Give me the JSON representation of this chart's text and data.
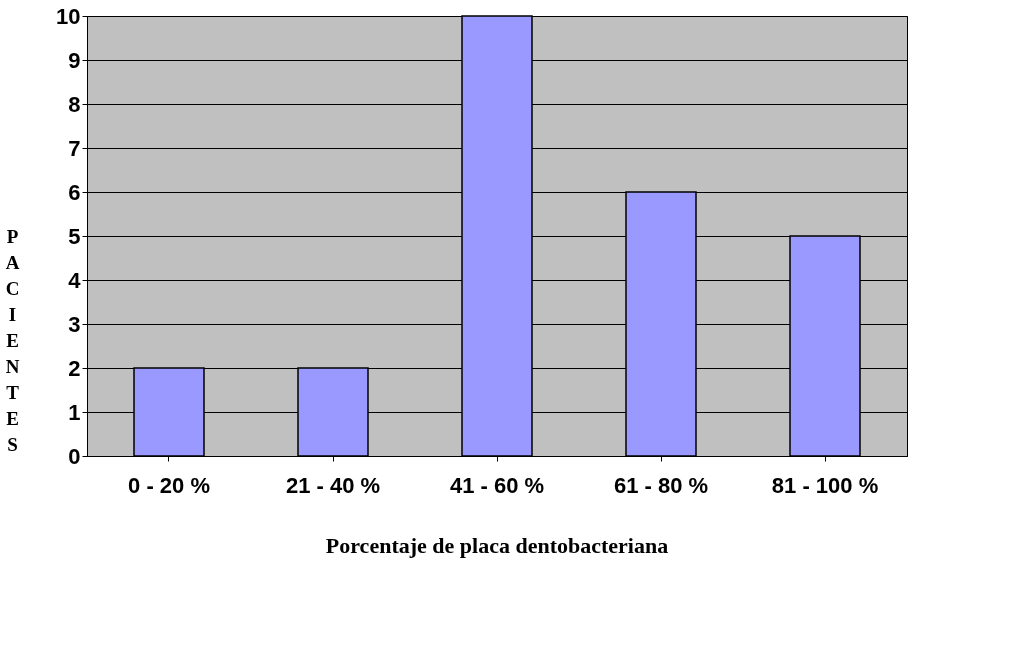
{
  "chart_data": {
    "type": "bar",
    "xlabel": "Porcentaje de placa dentobacteriana",
    "ylabel": "PACIENTES",
    "categories": [
      "0 - 20 %",
      "21 - 40 %",
      "41 - 60 %",
      "61 - 80 %",
      "81 - 100 %"
    ],
    "values": [
      2,
      2,
      10,
      6,
      5
    ],
    "color": "#9999ff",
    "ylim": [
      0,
      10
    ],
    "yticks": [
      0,
      1,
      2,
      3,
      4,
      5,
      6,
      7,
      8,
      9,
      10
    ],
    "grid": "y"
  }
}
